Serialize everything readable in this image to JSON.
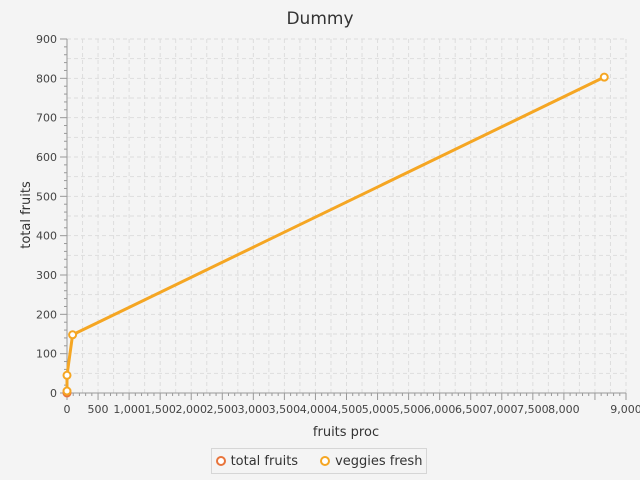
{
  "chart_data": {
    "type": "line",
    "title": "Dummy",
    "xlabel": "fruits proc",
    "ylabel": "total fruits",
    "xlim": [
      0,
      9000
    ],
    "ylim": [
      0,
      900
    ],
    "x_major_step": 500,
    "y_major_step": 100,
    "x_tick_labels": [
      "0",
      "500",
      "1,000",
      "1,500",
      "2,000",
      "2,500",
      "3,000",
      "3,500",
      "4,000",
      "4,500",
      "5,000",
      "5,500",
      "6,000",
      "6,500",
      "7,000",
      "7,500",
      "8,000",
      "",
      "9,000"
    ],
    "y_tick_labels": [
      "0",
      "100",
      "200",
      "300",
      "400",
      "500",
      "600",
      "700",
      "800",
      "900"
    ],
    "grid": true,
    "legend_position": "bottom",
    "series": [
      {
        "name": "total fruits",
        "color": "#e8743b",
        "points": [
          [
            0,
            0
          ]
        ]
      },
      {
        "name": "veggies fresh",
        "color": "#f5a623",
        "points": [
          [
            0,
            5
          ],
          [
            0,
            45
          ],
          [
            90,
            148
          ],
          [
            8650,
            803
          ]
        ]
      }
    ]
  }
}
